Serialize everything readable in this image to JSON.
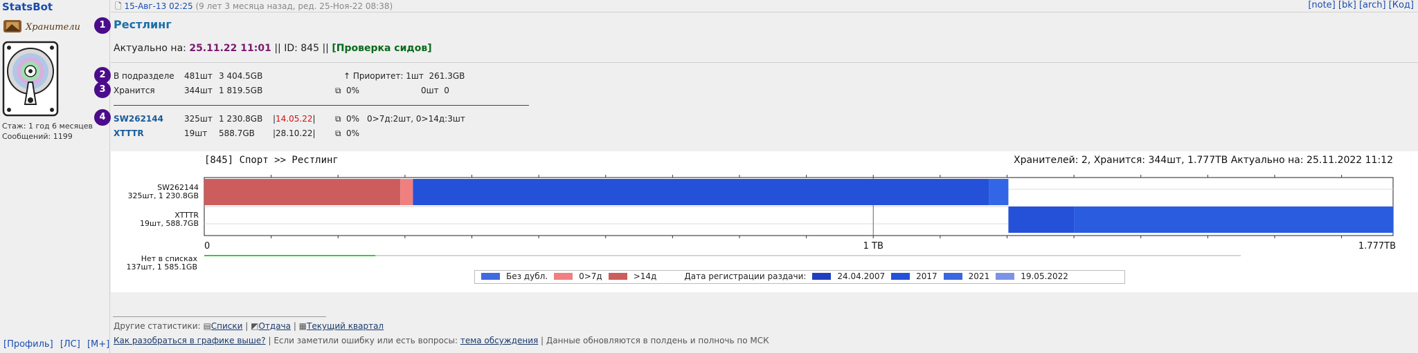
{
  "user": {
    "name": "StatsBot",
    "guild": "Хранители",
    "stazh_label": "Стаж:",
    "stazh_value": "1 год 6 месяцев",
    "posts_label": "Сообщений:",
    "posts_value": "1199",
    "footer_links": [
      "[Профиль]",
      "[ЛС]",
      "[М+]"
    ]
  },
  "post": {
    "date": "15-Авг-13 02:25",
    "age": "(9 лет 3 месяца назад, ред. 25-Ноя-22 08:38)",
    "links": [
      "[note]",
      "[bk]",
      "[arch]",
      "[Код]"
    ],
    "title": "Рестлинг",
    "actual_label": "Актуально на:",
    "actual_date": "25.11.22 11:01",
    "id_text": "|| ID: 845 ||",
    "check_link": "[Проверка сидов]"
  },
  "badges": [
    "1",
    "2",
    "3",
    "4"
  ],
  "summary": {
    "r1": {
      "label": "В подразделе",
      "count": "481шт",
      "size": "3 404.5GB",
      "extra": "↑ Приоритет: 1шт  261.3GB"
    },
    "r2": {
      "label": "Хранится",
      "count": "344шт",
      "size": "1 819.5GB",
      "pct": "0%",
      "extra": "0шт  0"
    }
  },
  "keepers": [
    {
      "name": "SW262144",
      "count": "325шт",
      "size": "1 230.8GB",
      "date": "14.05.22",
      "date_red": true,
      "pct": "0%",
      "tail": "0>7д:2шт, 0>14д:3шт"
    },
    {
      "name": "XTTTR",
      "count": "19шт",
      "size": "588.7GB",
      "date": "28.10.22",
      "date_red": false,
      "pct": "0%",
      "tail": ""
    }
  ],
  "chart_data": {
    "type": "bar",
    "header_left": "[845]   Спорт >> Рестлинг",
    "header_right": "Хранителей: 2,  Хранится: 344шт, 1.777TB   Актуально на: 25.11.2022 11:12",
    "xlim": [
      0,
      1.777
    ],
    "x_tick_labels": [
      "0",
      "1 TB",
      "1.777TB"
    ],
    "categories": [
      "SW262144\n325шт, 1 230.8GB",
      "XTTTR\n19шт, 588.7GB"
    ],
    "cat_lines": [
      [
        "SW262144",
        "325шт, 1 230.8GB"
      ],
      [
        "XTTTR",
        "19шт, 588.7GB"
      ]
    ],
    "bars": [
      {
        "keeper": "SW262144",
        "segments": [
          {
            "kind": ">14д",
            "from": 0,
            "to": 0.293,
            "color": "#cd5c5c"
          },
          {
            "kind": "0>7д",
            "from": 0.293,
            "to": 0.312,
            "color": "#f08080"
          },
          {
            "kind": "2017",
            "from": 0.312,
            "to": 1.173,
            "color": "#2451d8"
          },
          {
            "kind": "2021",
            "from": 1.173,
            "to": 1.202,
            "color": "#3366e6"
          }
        ]
      },
      {
        "keeper": "XTTTR",
        "segments": [
          {
            "kind": "2017",
            "from": 1.202,
            "to": 1.3,
            "color": "#2451d8"
          },
          {
            "kind": "2021",
            "from": 1.3,
            "to": 1.777,
            "color": "#2a5ce0"
          }
        ]
      }
    ],
    "not_listed_lines": [
      "Нет в списках",
      "137шт, 1 585.1GB"
    ]
  },
  "legend": {
    "items": [
      {
        "label": "Без дубл.",
        "color": "#4169e1"
      },
      {
        "label": "0>7д",
        "color": "#f08080"
      },
      {
        "label": ">14д",
        "color": "#cd5c5c"
      }
    ],
    "reg_label": "Дата регистрации раздачи:",
    "reg_items": [
      {
        "label": "24.04.2007",
        "color": "#1f3fbf"
      },
      {
        "label": "2017",
        "color": "#2451d8"
      },
      {
        "label": "2021",
        "color": "#3a66e0"
      },
      {
        "label": "19.05.2022",
        "color": "#7b93e6"
      }
    ]
  },
  "footer": {
    "other_label": "Другие статистики:",
    "other_links": [
      "Списки",
      "Отдача",
      "Текущий квартал"
    ],
    "help_link": "Как разобраться в графике выше?",
    "mid_text": "| Если заметили ошибку или есть вопросы:",
    "discuss_link": "тема обсуждения",
    "tail_text": "| Данные обновляются в полдень и полночь по МСК"
  }
}
